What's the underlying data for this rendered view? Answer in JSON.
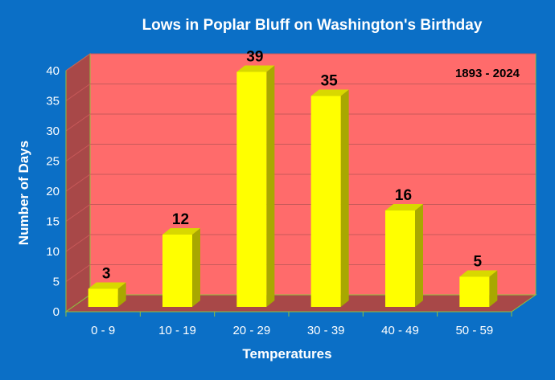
{
  "chart_data": {
    "type": "bar",
    "title": "Lows in Poplar Bluff on Washington's Birthday",
    "annotation": "1893 - 2024",
    "xlabel": "Temperatures",
    "ylabel": "Number of Days",
    "categories": [
      "0 - 9",
      "10 - 19",
      "20 - 29",
      "30 - 39",
      "40 - 49",
      "50 - 59"
    ],
    "values": [
      3,
      12,
      39,
      35,
      16,
      5
    ],
    "ylim": [
      0,
      40
    ],
    "yticks": [
      0,
      5,
      10,
      15,
      20,
      25,
      30,
      35,
      40
    ],
    "grid": true,
    "three_d": true
  },
  "colors": {
    "background": "#0B6FC6",
    "back_wall": "#FF6B6B",
    "side_wall": "#A84848",
    "floor": "#A84848",
    "gridline": "#C85A5A",
    "bar_front": "#FFFF00",
    "bar_side": "#A8A800",
    "bar_top": "#D8D800",
    "edge": "#8FBF3F"
  }
}
